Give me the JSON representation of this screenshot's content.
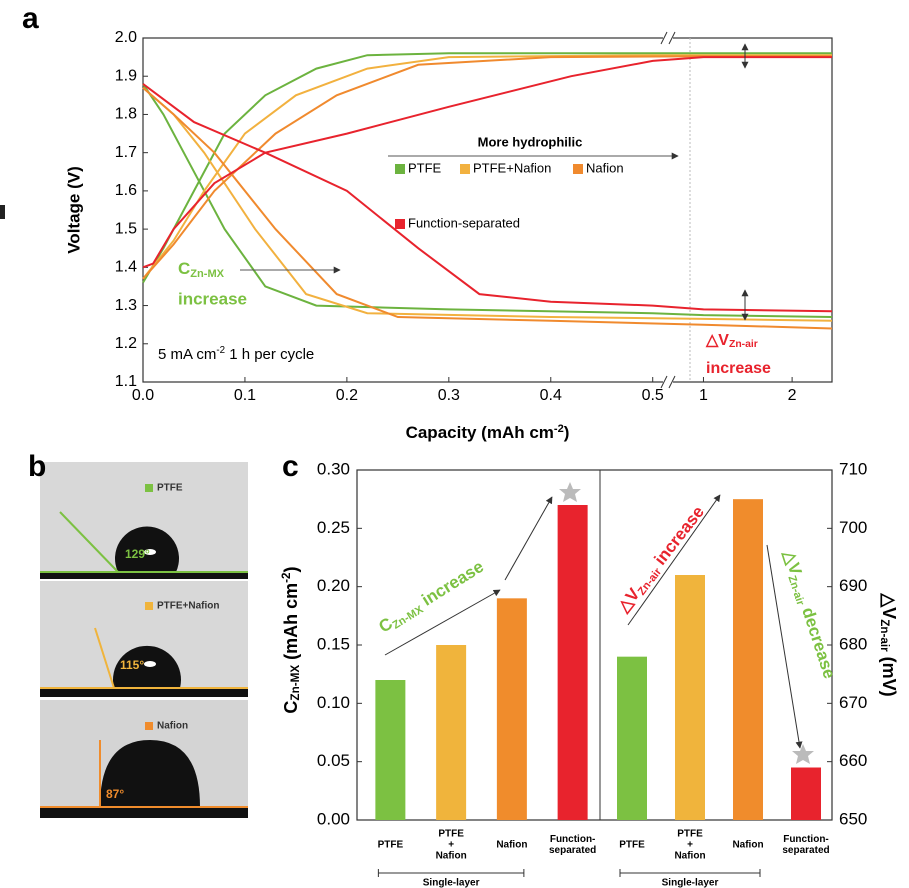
{
  "panel_labels": [
    "a",
    "b",
    "c"
  ],
  "panel_b": {
    "items": [
      {
        "name": "PTFE",
        "angle": "129°"
      },
      {
        "name": "PTFE+Nafion",
        "angle": "115°"
      },
      {
        "name": "Nafion",
        "angle": "87°"
      }
    ]
  },
  "chart_data": [
    {
      "type": "line",
      "xlabel": {
        "main": "Capacity (mAh cm",
        "sup": "-2",
        "end": ")"
      },
      "ylabel": "Voltage (V)",
      "xlim": [
        0,
        2.45
      ],
      "xbreak": [
        0.515,
        0.6
      ],
      "xticks": [
        {
          "value": 0,
          "label": "0.0"
        },
        0.1,
        0.2,
        0.3,
        0.4,
        0.5,
        1,
        2
      ],
      "ylim": [
        1.1,
        2.0
      ],
      "yticks": [
        1.1,
        1.2,
        1.3,
        1.4,
        1.5,
        1.6,
        1.7,
        1.8,
        1.9,
        {
          "value": 2,
          "label": "2.0"
        }
      ],
      "annotations": {
        "hydrophilic": "More hydrophilic",
        "c_label": {
          "main": "C",
          "sub": "Zn-MX"
        },
        "c_rest": "increase",
        "condition": {
          "main": "5 mA cm",
          "sup": "-2",
          "end": " 1 h per cycle"
        },
        "dv_label": {
          "main": "△V",
          "sub": "Zn-air"
        },
        "dv_rest": "increase"
      },
      "series": [
        {
          "name": "PTFE",
          "color": "#6cb33f",
          "charge": {
            "x": [
              0,
              0.02,
              0.05,
              0.08,
              0.12,
              0.17,
              0.22,
              0.3,
              0.5,
              1,
              2.45
            ],
            "values": [
              1.36,
              1.45,
              1.6,
              1.75,
              1.85,
              1.92,
              1.955,
              1.96,
              1.96,
              1.96,
              1.96
            ]
          },
          "discharge": {
            "x": [
              0,
              0.02,
              0.04,
              0.08,
              0.12,
              0.17,
              0.3,
              0.5,
              1,
              2.45
            ],
            "values": [
              1.88,
              1.8,
              1.7,
              1.5,
              1.35,
              1.3,
              1.29,
              1.28,
              1.275,
              1.27
            ]
          }
        },
        {
          "name": "PTFE+Nafion",
          "color": "#f2b13f",
          "charge": {
            "x": [
              0,
              0.03,
              0.06,
              0.1,
              0.15,
              0.22,
              0.3,
              0.5,
              1,
              2.45
            ],
            "values": [
              1.37,
              1.47,
              1.6,
              1.75,
              1.85,
              1.92,
              1.95,
              1.955,
              1.955,
              1.955
            ]
          },
          "discharge": {
            "x": [
              0,
              0.03,
              0.06,
              0.11,
              0.16,
              0.22,
              0.4,
              1,
              2.45
            ],
            "values": [
              1.87,
              1.8,
              1.7,
              1.5,
              1.33,
              1.28,
              1.27,
              1.265,
              1.26
            ]
          }
        },
        {
          "name": "Nafion",
          "color": "#f08a2e",
          "charge": {
            "x": [
              0,
              0.03,
              0.07,
              0.13,
              0.19,
              0.27,
              0.4,
              1,
              2.45
            ],
            "values": [
              1.37,
              1.46,
              1.6,
              1.75,
              1.85,
              1.93,
              1.95,
              1.952,
              1.952
            ]
          },
          "discharge": {
            "x": [
              0,
              0.03,
              0.07,
              0.13,
              0.19,
              0.25,
              0.4,
              1,
              2.45
            ],
            "values": [
              1.87,
              1.8,
              1.7,
              1.5,
              1.33,
              1.27,
              1.26,
              1.25,
              1.24
            ]
          }
        },
        {
          "name": "Function-separated",
          "color": "#e8232d",
          "charge": {
            "x": [
              0,
              0.01,
              0.03,
              0.07,
              0.12,
              0.2,
              0.3,
              0.42,
              0.5,
              1,
              2.45
            ],
            "values": [
              1.4,
              1.41,
              1.5,
              1.62,
              1.7,
              1.75,
              1.82,
              1.9,
              1.94,
              1.95,
              1.95
            ]
          },
          "discharge": {
            "x": [
              0,
              0.05,
              0.12,
              0.2,
              0.27,
              0.33,
              0.4,
              0.5,
              1,
              2.45
            ],
            "values": [
              1.88,
              1.78,
              1.7,
              1.6,
              1.45,
              1.33,
              1.31,
              1.3,
              1.29,
              1.285
            ]
          }
        }
      ]
    },
    {
      "type": "bar",
      "ylabel": {
        "main": "C",
        "sub": "Zn-MX",
        "rest": " (mAh cm",
        "sup": "-2",
        "end": ")"
      },
      "y2label": {
        "main": "△V",
        "sub": "Zn-air",
        "end": " (mV)"
      },
      "categories": [
        [
          "PTFE"
        ],
        [
          "PTFE",
          "+",
          "Nafion"
        ],
        [
          "Nafion"
        ],
        [
          "Function-",
          "separated"
        ],
        [
          "PTFE"
        ],
        [
          "PTFE",
          "+",
          "Nafion"
        ],
        [
          "Nafion"
        ],
        [
          "Function-",
          "separated"
        ]
      ],
      "groups": [
        "Single-layer",
        "Single-layer"
      ],
      "colors": [
        "#7cc142",
        "#f0b43c",
        "#f08c2c",
        "#e8232d",
        "#7cc142",
        "#f0b43c",
        "#f08c2c",
        "#e8232d"
      ],
      "ylim": [
        0,
        0.3
      ],
      "yticks": [
        {
          "value": 0,
          "label": "0.00"
        },
        {
          "value": 0.05,
          "label": "0.05"
        },
        {
          "value": 0.1,
          "label": "0.10"
        },
        {
          "value": 0.15,
          "label": "0.15"
        },
        {
          "value": 0.2,
          "label": "0.20"
        },
        {
          "value": 0.25,
          "label": "0.25"
        },
        {
          "value": 0.3,
          "label": "0.30"
        }
      ],
      "y2lim": [
        650,
        710
      ],
      "y2ticks": [
        650,
        660,
        670,
        680,
        690,
        700,
        710
      ],
      "series": [
        {
          "values": [
            0.12,
            0.15,
            0.19,
            0.27,
            null,
            null,
            null,
            null
          ]
        },
        {
          "axis": "y2",
          "values": [
            null,
            null,
            null,
            null,
            678,
            692,
            705,
            659
          ]
        }
      ],
      "annotations": {
        "c_inc": {
          "main": "C",
          "sub": "Zn-MX",
          "rest": " increase"
        },
        "dv_inc": {
          "main": "△V",
          "sub": "Zn-air",
          "rest": " increase"
        },
        "dv_dec": {
          "main": "△V",
          "sub": "Zn-air",
          "rest": " decrease"
        }
      }
    }
  ]
}
